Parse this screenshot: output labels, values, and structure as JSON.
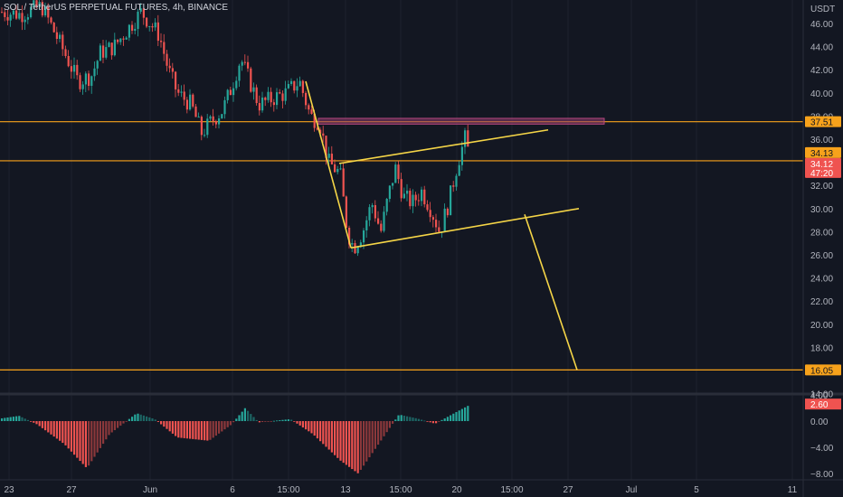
{
  "header": {
    "symbol_line": "SOL / TetherUS PERPETUAL FUTURES, 4h, BINANCE"
  },
  "colors": {
    "background": "#131722",
    "up": "#26a69a",
    "down": "#ef5350",
    "level_line": "#f7a21b",
    "pattern_line": "#f5d547",
    "zone": "#8e3b6c",
    "tag_orange": "#f7a21b",
    "tag_red": "#ef5350"
  },
  "price_axis": {
    "unit": "USDT",
    "ticks": [
      "46.00",
      "44.00",
      "42.00",
      "40.00",
      "38.00",
      "36.00",
      "32.00",
      "30.00",
      "28.00",
      "26.00",
      "24.00",
      "22.00",
      "20.00",
      "18.00",
      "14.00"
    ],
    "tags": [
      {
        "text": "37.51",
        "kind": "orange"
      },
      {
        "text": "34.13",
        "kind": "orange"
      },
      {
        "text": "34.12",
        "kind": "red"
      },
      {
        "text": "47:20",
        "kind": "red"
      },
      {
        "text": "16.05",
        "kind": "orange"
      }
    ]
  },
  "indicator_axis": {
    "ticks": [
      "4.00",
      "0.00",
      "−4.00",
      "−8.00"
    ],
    "tag": "2.60"
  },
  "time_axis": {
    "labels": [
      "23",
      "27",
      "Jun",
      "6",
      "15:00",
      "13",
      "15:00",
      "20",
      "15:00",
      "27",
      "Jul",
      "5",
      "11"
    ]
  },
  "levels": [
    37.51,
    34.13,
    16.05
  ],
  "chart_data": {
    "type": "candlestick",
    "title": "SOL / TetherUS PERPETUAL FUTURES, 4h, BINANCE",
    "ylabel": "USDT",
    "ylim": [
      14,
      47
    ],
    "last_price": 34.12,
    "price_series": [
      {
        "x": 0,
        "y": 47.0
      },
      {
        "x": 22,
        "y": 46.8
      },
      {
        "x": 45,
        "y": 47.5
      },
      {
        "x": 70,
        "y": 43.5
      },
      {
        "x": 85,
        "y": 41.0
      },
      {
        "x": 100,
        "y": 41.5
      },
      {
        "x": 110,
        "y": 43.5
      },
      {
        "x": 125,
        "y": 44.0
      },
      {
        "x": 140,
        "y": 45.5
      },
      {
        "x": 155,
        "y": 47.0
      },
      {
        "x": 175,
        "y": 45.0
      },
      {
        "x": 185,
        "y": 42.0
      },
      {
        "x": 195,
        "y": 40.0
      },
      {
        "x": 210,
        "y": 39.0
      },
      {
        "x": 222,
        "y": 36.5
      },
      {
        "x": 232,
        "y": 37.5
      },
      {
        "x": 245,
        "y": 38.5
      },
      {
        "x": 255,
        "y": 40.5
      },
      {
        "x": 265,
        "y": 43.0
      },
      {
        "x": 275,
        "y": 41.0
      },
      {
        "x": 285,
        "y": 39.0
      },
      {
        "x": 300,
        "y": 39.5
      },
      {
        "x": 315,
        "y": 40.0
      },
      {
        "x": 330,
        "y": 41.0
      },
      {
        "x": 342,
        "y": 38.0
      },
      {
        "x": 352,
        "y": 37.5
      },
      {
        "x": 362,
        "y": 34.0
      },
      {
        "x": 375,
        "y": 33.0
      },
      {
        "x": 383,
        "y": 28.0
      },
      {
        "x": 390,
        "y": 26.6
      },
      {
        "x": 400,
        "y": 28.0
      },
      {
        "x": 410,
        "y": 30.5
      },
      {
        "x": 420,
        "y": 28.0
      },
      {
        "x": 428,
        "y": 31.0
      },
      {
        "x": 436,
        "y": 33.5
      },
      {
        "x": 445,
        "y": 31.0
      },
      {
        "x": 455,
        "y": 30.5
      },
      {
        "x": 465,
        "y": 31.5
      },
      {
        "x": 475,
        "y": 30.0
      },
      {
        "x": 485,
        "y": 28.0
      },
      {
        "x": 495,
        "y": 30.5
      },
      {
        "x": 505,
        "y": 34.0
      },
      {
        "x": 514,
        "y": 36.3
      },
      {
        "x": 518,
        "y": 34.1
      }
    ],
    "histogram_points": [
      {
        "x": 0,
        "v": 0.4
      },
      {
        "x": 20,
        "v": 0.8
      },
      {
        "x": 40,
        "v": -0.5
      },
      {
        "x": 70,
        "v": -3.5
      },
      {
        "x": 95,
        "v": -7.2
      },
      {
        "x": 120,
        "v": -2.0
      },
      {
        "x": 150,
        "v": 1.2
      },
      {
        "x": 170,
        "v": 0.3
      },
      {
        "x": 195,
        "v": -2.5
      },
      {
        "x": 230,
        "v": -3.0
      },
      {
        "x": 255,
        "v": -0.5
      },
      {
        "x": 270,
        "v": 2.0
      },
      {
        "x": 285,
        "v": -0.2
      },
      {
        "x": 320,
        "v": 0.3
      },
      {
        "x": 345,
        "v": -2.0
      },
      {
        "x": 375,
        "v": -6.0
      },
      {
        "x": 395,
        "v": -8.0
      },
      {
        "x": 420,
        "v": -3.0
      },
      {
        "x": 440,
        "v": 1.0
      },
      {
        "x": 460,
        "v": 0.4
      },
      {
        "x": 480,
        "v": -0.4
      },
      {
        "x": 505,
        "v": 1.5
      },
      {
        "x": 520,
        "v": 2.6
      }
    ],
    "annotations": {
      "horizontal_levels": [
        37.51,
        34.13,
        16.05
      ],
      "zone": [
        37.3,
        37.8
      ],
      "lines": [
        {
          "from": [
            338,
            41.0
          ],
          "to": [
            388,
            26.6
          ]
        },
        {
          "from": [
            388,
            26.6
          ],
          "to": [
            640,
            30.0
          ]
        },
        {
          "from": [
            375,
            33.9
          ],
          "to": [
            606,
            36.8
          ]
        },
        {
          "from": [
            580,
            29.5
          ],
          "to": [
            638,
            16.05
          ]
        }
      ]
    }
  }
}
